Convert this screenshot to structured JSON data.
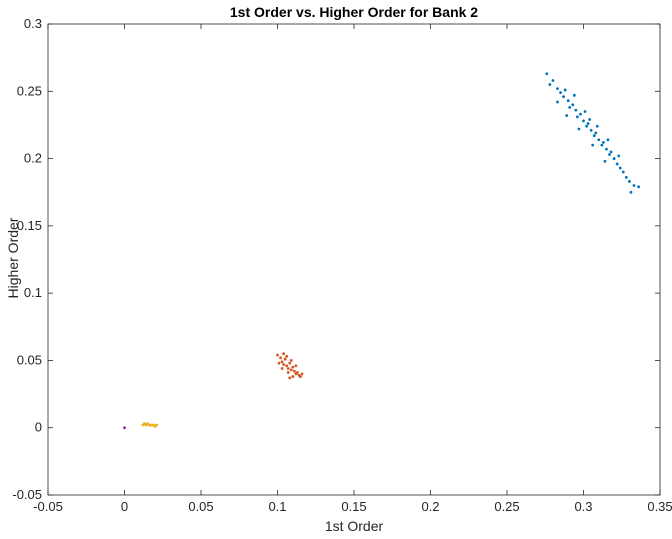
{
  "chart_data": {
    "type": "scatter",
    "title": "1st Order vs. Higher Order for Bank 2",
    "xlabel": "1st Order",
    "ylabel": "Higher Order",
    "xlim": [
      -0.05,
      0.35
    ],
    "ylim": [
      -0.05,
      0.3
    ],
    "x_ticks": [
      "-0.05",
      "0",
      "0.05",
      "0.1",
      "0.15",
      "0.2",
      "0.25",
      "0.3",
      "0.35"
    ],
    "y_ticks": [
      "-0.05",
      "0",
      "0.05",
      "0.1",
      "0.15",
      "0.2",
      "0.25",
      "0.3"
    ],
    "grid": false,
    "legend": "none",
    "series": [
      {
        "color": "#0072BD",
        "points": [
          [
            0.276,
            0.263
          ],
          [
            0.278,
            0.255
          ],
          [
            0.28,
            0.258
          ],
          [
            0.283,
            0.252
          ],
          [
            0.285,
            0.249
          ],
          [
            0.287,
            0.246
          ],
          [
            0.288,
            0.251
          ],
          [
            0.29,
            0.243
          ],
          [
            0.291,
            0.238
          ],
          [
            0.293,
            0.24
          ],
          [
            0.295,
            0.236
          ],
          [
            0.296,
            0.231
          ],
          [
            0.298,
            0.233
          ],
          [
            0.3,
            0.228
          ],
          [
            0.302,
            0.224
          ],
          [
            0.303,
            0.226
          ],
          [
            0.305,
            0.221
          ],
          [
            0.307,
            0.217
          ],
          [
            0.308,
            0.219
          ],
          [
            0.31,
            0.214
          ],
          [
            0.312,
            0.21
          ],
          [
            0.313,
            0.212
          ],
          [
            0.315,
            0.207
          ],
          [
            0.317,
            0.203
          ],
          [
            0.318,
            0.205
          ],
          [
            0.32,
            0.2
          ],
          [
            0.322,
            0.196
          ],
          [
            0.324,
            0.193
          ],
          [
            0.326,
            0.19
          ],
          [
            0.328,
            0.186
          ],
          [
            0.33,
            0.183
          ],
          [
            0.333,
            0.18
          ],
          [
            0.336,
            0.179
          ],
          [
            0.331,
            0.175
          ],
          [
            0.283,
            0.242
          ],
          [
            0.294,
            0.247
          ],
          [
            0.301,
            0.235
          ],
          [
            0.309,
            0.224
          ],
          [
            0.316,
            0.214
          ],
          [
            0.323,
            0.202
          ],
          [
            0.297,
            0.222
          ],
          [
            0.306,
            0.21
          ],
          [
            0.314,
            0.198
          ],
          [
            0.289,
            0.232
          ],
          [
            0.304,
            0.229
          ]
        ]
      },
      {
        "color": "#D95319",
        "points": [
          [
            0.1,
            0.054
          ],
          [
            0.102,
            0.052
          ],
          [
            0.103,
            0.049
          ],
          [
            0.104,
            0.047
          ],
          [
            0.105,
            0.051
          ],
          [
            0.106,
            0.046
          ],
          [
            0.107,
            0.044
          ],
          [
            0.108,
            0.048
          ],
          [
            0.109,
            0.043
          ],
          [
            0.11,
            0.045
          ],
          [
            0.111,
            0.042
          ],
          [
            0.112,
            0.04
          ],
          [
            0.113,
            0.041
          ],
          [
            0.114,
            0.039
          ],
          [
            0.115,
            0.038
          ],
          [
            0.116,
            0.04
          ],
          [
            0.103,
            0.044
          ],
          [
            0.101,
            0.048
          ],
          [
            0.109,
            0.05
          ],
          [
            0.106,
            0.053
          ],
          [
            0.112,
            0.046
          ],
          [
            0.107,
            0.041
          ],
          [
            0.104,
            0.055
          ],
          [
            0.11,
            0.038
          ],
          [
            0.108,
            0.037
          ]
        ]
      },
      {
        "color": "#EDB120",
        "points": [
          [
            0.012,
            0.002
          ],
          [
            0.013,
            0.003
          ],
          [
            0.014,
            0.002
          ],
          [
            0.015,
            0.003
          ],
          [
            0.016,
            0.002
          ],
          [
            0.017,
            0.002
          ],
          [
            0.018,
            0.002
          ],
          [
            0.019,
            0.002
          ],
          [
            0.02,
            0.001
          ],
          [
            0.021,
            0.002
          ]
        ]
      },
      {
        "color": "#7E2F8E",
        "points": [
          [
            0.0,
            0.0
          ]
        ]
      }
    ]
  }
}
